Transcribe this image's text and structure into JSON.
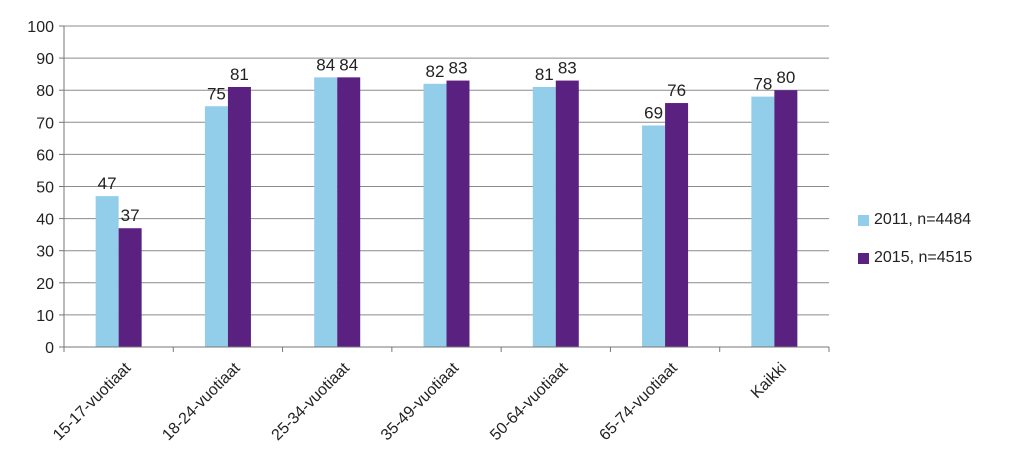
{
  "chart_data": {
    "type": "bar",
    "categories": [
      "15-17-vuotiaat",
      "18-24-vuotiaat",
      "25-34-vuotiaat",
      "35-49-vuotiaat",
      "50-64-vuotiaat",
      "65-74-vuotiaat",
      "Kaikki"
    ],
    "series": [
      {
        "name": "2011, n=4484",
        "values": [
          47,
          75,
          84,
          82,
          81,
          69,
          78
        ],
        "color": "#92cdea"
      },
      {
        "name": "2015, n=4515",
        "values": [
          37,
          81,
          84,
          83,
          83,
          76,
          80
        ],
        "color": "#5b2180"
      }
    ],
    "yticks": [
      "0",
      "10",
      "20",
      "30",
      "40",
      "50",
      "60",
      "70",
      "80",
      "90",
      "100"
    ],
    "ylim": [
      0,
      100
    ],
    "grid": true,
    "legend_position": "right"
  }
}
